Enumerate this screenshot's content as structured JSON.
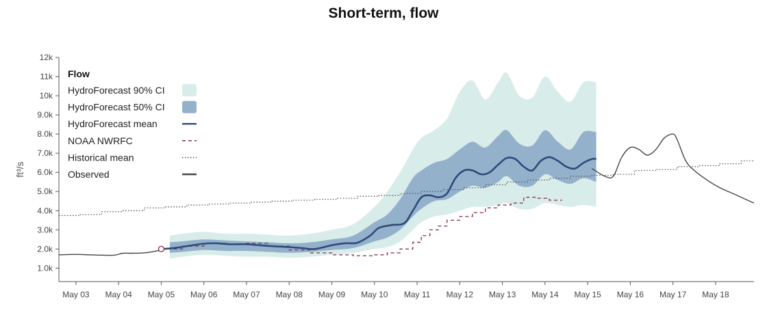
{
  "title": "Short-term, flow",
  "chart_data": {
    "type": "line",
    "title": "Short-term, flow",
    "ylabel": "ft³/s",
    "xlabel": "",
    "ylim": [
      300,
      12000
    ],
    "y_ticks": [
      1000,
      2000,
      3000,
      4000,
      5000,
      6000,
      7000,
      8000,
      9000,
      10000,
      11000,
      12000
    ],
    "y_tick_labels": [
      "1.0k",
      "2.0k",
      "3.0k",
      "4.0k",
      "5.0k",
      "6.0k",
      "7.0k",
      "8.0k",
      "9.0k",
      "10k",
      "11k",
      "12k"
    ],
    "x_tick_labels": [
      "May 03",
      "May 04",
      "May 05",
      "May 06",
      "May 07",
      "May 08",
      "May 09",
      "May 10",
      "May 11",
      "May 12",
      "May 13",
      "May 14",
      "May 15",
      "May 16",
      "May 17",
      "May 18"
    ],
    "x_tick_days": [
      3,
      4,
      5,
      6,
      7,
      8,
      9,
      10,
      11,
      12,
      13,
      14,
      15,
      16,
      17,
      18
    ],
    "x_domain_days": [
      2.6,
      18.9
    ],
    "legend": {
      "title": "Flow",
      "position": "top-left",
      "items": [
        {
          "label": "HydroForecast 90% CI",
          "symbol": "band",
          "color": "#d8ece9"
        },
        {
          "label": "HydroForecast 50% CI",
          "symbol": "band",
          "color": "#94b1cc"
        },
        {
          "label": "HydroForecast mean",
          "symbol": "line",
          "color": "#2d4a7a"
        },
        {
          "label": "NOAA NWRFC",
          "symbol": "dashed",
          "color": "#8a3a55"
        },
        {
          "label": "Historical mean",
          "symbol": "dotted",
          "color": "#555555"
        },
        {
          "label": "Observed",
          "symbol": "line",
          "color": "#444444"
        }
      ]
    },
    "series": [
      {
        "name": "HydroForecast 90% CI",
        "x": [
          5.2,
          5.5,
          6.0,
          6.5,
          7.0,
          7.5,
          8.0,
          8.5,
          9.0,
          9.5,
          10.0,
          10.3,
          10.6,
          10.9,
          11.1,
          11.4,
          11.7,
          12.0,
          12.3,
          12.6,
          12.9,
          13.1,
          13.4,
          13.7,
          14.0,
          14.3,
          14.6,
          14.9,
          15.2
        ],
        "upper": [
          2700,
          2800,
          2900,
          2800,
          2800,
          2750,
          2700,
          2800,
          3000,
          3300,
          4200,
          5000,
          6000,
          7200,
          7800,
          8200,
          8800,
          10200,
          10800,
          9800,
          10700,
          11200,
          10000,
          9900,
          11000,
          10200,
          9700,
          10700,
          10700
        ],
        "lower": [
          1500,
          1600,
          1700,
          1650,
          1600,
          1600,
          1550,
          1600,
          1700,
          1800,
          2000,
          2100,
          2400,
          3000,
          3400,
          3700,
          3800,
          4000,
          4200,
          4200,
          4300,
          4400,
          4100,
          4100,
          4400,
          4300,
          4200,
          4300,
          4200
        ]
      },
      {
        "name": "HydroForecast 50% CI",
        "x": [
          5.2,
          5.5,
          6.0,
          6.5,
          7.0,
          7.5,
          8.0,
          8.5,
          9.0,
          9.5,
          10.0,
          10.3,
          10.6,
          10.9,
          11.1,
          11.4,
          11.7,
          12.0,
          12.3,
          12.6,
          12.9,
          13.1,
          13.4,
          13.7,
          14.0,
          14.3,
          14.6,
          14.9,
          15.2
        ],
        "upper": [
          2350,
          2400,
          2500,
          2450,
          2400,
          2350,
          2300,
          2350,
          2500,
          2700,
          3400,
          3800,
          4600,
          5700,
          6100,
          6500,
          6700,
          7200,
          7600,
          7300,
          7900,
          8200,
          7500,
          7400,
          8200,
          7600,
          7200,
          8100,
          8100
        ],
        "lower": [
          1800,
          1850,
          1950,
          1900,
          1900,
          1850,
          1800,
          1850,
          1950,
          2050,
          2400,
          2600,
          3000,
          3700,
          4100,
          4500,
          4600,
          5000,
          5300,
          5200,
          5500,
          5800,
          5300,
          5300,
          5900,
          5600,
          5400,
          5700,
          5500
        ]
      },
      {
        "name": "HydroForecast mean",
        "x": [
          5.0,
          5.3,
          5.6,
          6.0,
          6.3,
          6.6,
          7.0,
          7.3,
          7.6,
          8.0,
          8.3,
          8.6,
          9.0,
          9.3,
          9.6,
          9.9,
          10.1,
          10.4,
          10.7,
          10.9,
          11.1,
          11.3,
          11.5,
          11.7,
          11.9,
          12.1,
          12.3,
          12.5,
          12.7,
          12.9,
          13.1,
          13.3,
          13.5,
          13.7,
          13.9,
          14.1,
          14.3,
          14.5,
          14.7,
          14.9,
          15.1,
          15.2
        ],
        "y": [
          2000,
          2050,
          2150,
          2280,
          2300,
          2250,
          2250,
          2200,
          2150,
          2100,
          2050,
          2000,
          2200,
          2300,
          2330,
          2700,
          3100,
          3250,
          3350,
          4000,
          4700,
          4800,
          4700,
          4900,
          5700,
          6100,
          6100,
          5900,
          6000,
          6400,
          6750,
          6700,
          6300,
          6100,
          6600,
          6800,
          6600,
          6300,
          6200,
          6500,
          6700,
          6700
        ]
      },
      {
        "name": "NOAA NWRFC",
        "x": [
          5.0,
          5.5,
          6.0,
          6.5,
          7.0,
          7.5,
          8.0,
          8.5,
          9.0,
          9.5,
          10.0,
          10.3,
          10.6,
          10.9,
          11.1,
          11.3,
          11.5,
          11.7,
          12.0,
          12.3,
          12.6,
          12.9,
          13.2,
          13.5,
          13.8,
          14.1,
          14.4
        ],
        "y": [
          2000,
          2150,
          2300,
          2250,
          2300,
          2150,
          1950,
          1800,
          1700,
          1650,
          1700,
          1800,
          2000,
          2350,
          2700,
          3000,
          3200,
          3500,
          3700,
          3900,
          4150,
          4300,
          4400,
          4700,
          4650,
          4550,
          4550
        ]
      },
      {
        "name": "Historical mean",
        "x": [
          2.6,
          3.1,
          3.6,
          4.1,
          4.6,
          5.1,
          5.6,
          6.1,
          6.6,
          7.1,
          7.6,
          8.1,
          8.6,
          9.1,
          9.6,
          10.1,
          10.6,
          11.1,
          11.6,
          12.1,
          12.6,
          13.1,
          13.6,
          14.1,
          14.6,
          15.1,
          15.6,
          16.1,
          16.6,
          17.1,
          17.6,
          18.1,
          18.6,
          18.9
        ],
        "y": [
          3750,
          3800,
          3950,
          4000,
          4150,
          4200,
          4300,
          4350,
          4400,
          4450,
          4500,
          4550,
          4600,
          4650,
          4750,
          4800,
          4900,
          5000,
          5100,
          5200,
          5350,
          5500,
          5600,
          5700,
          5800,
          5850,
          5900,
          6100,
          6150,
          6300,
          6350,
          6450,
          6600,
          6650
        ]
      },
      {
        "name": "Observed",
        "x": [
          2.6,
          3.0,
          3.3,
          3.6,
          3.9,
          4.1,
          4.3,
          4.6,
          4.9,
          5.0
        ],
        "y": [
          1700,
          1720,
          1700,
          1680,
          1680,
          1780,
          1780,
          1800,
          1900,
          2000
        ]
      },
      {
        "name": "Observed",
        "x": [
          15.1,
          15.4,
          15.6,
          15.8,
          16.0,
          16.2,
          16.4,
          16.6,
          16.8,
          17.0,
          17.1,
          17.3,
          17.5,
          17.8,
          18.1,
          18.4,
          18.7,
          18.9
        ],
        "y": [
          6200,
          5800,
          5800,
          6800,
          7300,
          7200,
          6900,
          7200,
          7800,
          8000,
          7700,
          6600,
          6100,
          5600,
          5200,
          4900,
          4600,
          4400
        ]
      }
    ]
  }
}
